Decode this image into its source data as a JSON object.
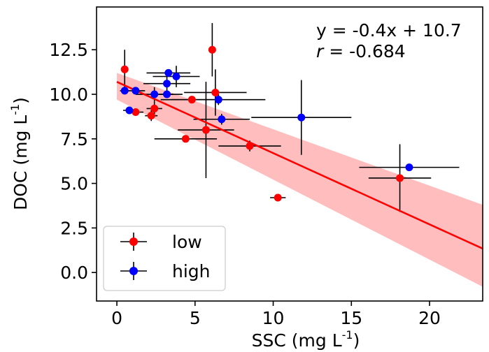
{
  "chart_data": {
    "type": "scatter",
    "xlabel": "SSC (mg L",
    "xlabel_sup": "-1",
    "xlabel_end": ")",
    "ylabel": "DOC (mg L",
    "ylabel_sup": "-1",
    "ylabel_end": ")",
    "xlim": [
      -1.3,
      23.4
    ],
    "ylim": [
      -1.6,
      14.9
    ],
    "xticks": [
      0,
      5,
      10,
      15,
      20
    ],
    "xtick_labels": [
      "0",
      "5",
      "10",
      "15",
      "20"
    ],
    "yticks": [
      0.0,
      2.5,
      5.0,
      7.5,
      10.0,
      12.5
    ],
    "ytick_labels": [
      "0.0",
      "2.5",
      "5.0",
      "7.5",
      "10.0",
      "12.5"
    ],
    "grid": false,
    "legend_position": "lower-left",
    "annotation": {
      "equation": "y = -0.4x + 10.7",
      "r_symbol": "r",
      "r_value": " = -0.684"
    },
    "fit": {
      "slope": -0.4,
      "intercept": 10.7,
      "color": "#ff0000",
      "band_color": "#ffb6b6",
      "band_lower": [
        [
          0,
          9.7
        ],
        [
          23.4,
          -0.8
        ]
      ],
      "band_upper": [
        [
          0,
          11.2
        ],
        [
          23.4,
          3.8
        ]
      ]
    },
    "series": [
      {
        "name": "low",
        "color": "#ff0000",
        "points": [
          {
            "x": 0.5,
            "y": 11.4,
            "xerr": 0.2,
            "yerr": 1.1
          },
          {
            "x": 1.2,
            "y": 9.0,
            "xerr": 0.5,
            "yerr": 0.2
          },
          {
            "x": 2.2,
            "y": 8.8,
            "xerr": 0.4,
            "yerr": 0.3
          },
          {
            "x": 2.4,
            "y": 9.2,
            "xerr": 0.5,
            "yerr": 0.4
          },
          {
            "x": 4.4,
            "y": 7.5,
            "xerr": 2.0,
            "yerr": 0.1
          },
          {
            "x": 4.8,
            "y": 9.7,
            "xerr": 2.0,
            "yerr": 0.1
          },
          {
            "x": 5.7,
            "y": 8.0,
            "xerr": 1.8,
            "yerr": 2.7
          },
          {
            "x": 6.1,
            "y": 12.5,
            "xerr": 0.2,
            "yerr": 1.5
          },
          {
            "x": 6.3,
            "y": 10.1,
            "xerr": 2.0,
            "yerr": 1.3
          },
          {
            "x": 8.5,
            "y": 7.1,
            "xerr": 2.0,
            "yerr": 0.3
          },
          {
            "x": 10.3,
            "y": 4.2,
            "xerr": 0.5,
            "yerr": 0.1
          },
          {
            "x": 18.1,
            "y": 5.3,
            "xerr": 2.0,
            "yerr": 1.9
          }
        ]
      },
      {
        "name": "high",
        "color": "#0000ff",
        "points": [
          {
            "x": 0.5,
            "y": 10.2,
            "xerr": 0.3,
            "yerr": 0.1
          },
          {
            "x": 0.8,
            "y": 9.1,
            "xerr": 0.4,
            "yerr": 0.2
          },
          {
            "x": 1.2,
            "y": 10.2,
            "xerr": 0.6,
            "yerr": 0.1
          },
          {
            "x": 2.4,
            "y": 10.0,
            "xerr": 1.2,
            "yerr": 0.4
          },
          {
            "x": 3.2,
            "y": 10.0,
            "xerr": 1.0,
            "yerr": 0.2
          },
          {
            "x": 3.2,
            "y": 10.6,
            "xerr": 1.5,
            "yerr": 0.4
          },
          {
            "x": 3.3,
            "y": 11.2,
            "xerr": 1.4,
            "yerr": 0.1
          },
          {
            "x": 3.8,
            "y": 11.0,
            "xerr": 1.5,
            "yerr": 0.6
          },
          {
            "x": 6.5,
            "y": 9.7,
            "xerr": 3.0,
            "yerr": 0.3
          },
          {
            "x": 6.7,
            "y": 8.6,
            "xerr": 1.8,
            "yerr": 0.3
          },
          {
            "x": 11.8,
            "y": 8.7,
            "xerr": 3.2,
            "yerr": 2.1
          },
          {
            "x": 18.7,
            "y": 5.9,
            "xerr": 3.2,
            "yerr": 0.2
          }
        ]
      }
    ]
  }
}
